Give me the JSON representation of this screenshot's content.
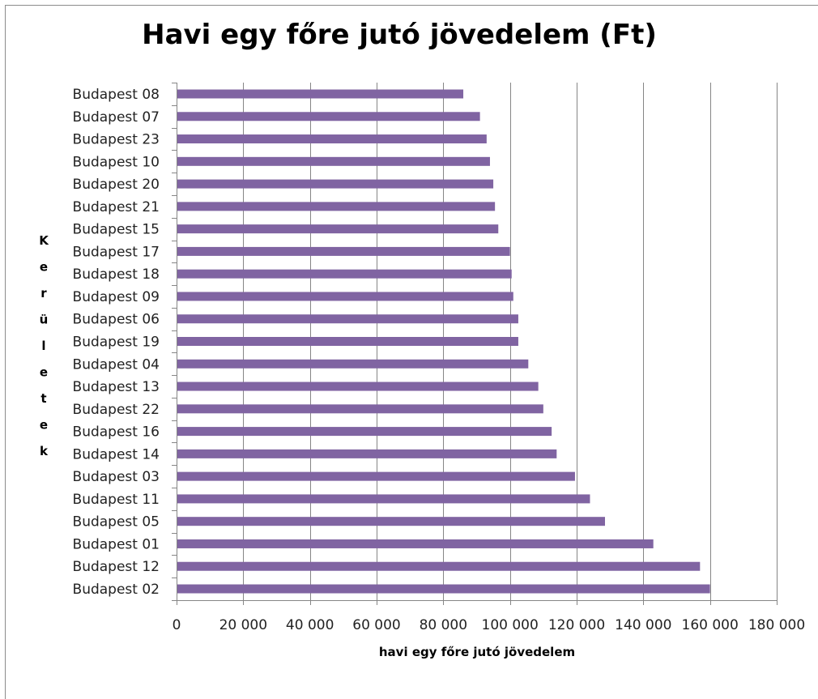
{
  "chart_data": {
    "type": "bar",
    "orientation": "horizontal",
    "title": "Havi egy főre jutó jövedelem (Ft)",
    "xlabel": "havi egy főre jutó jövedelem",
    "ylabel": "Kerületek",
    "categories": [
      "Budapest 08",
      "Budapest 07",
      "Budapest 23",
      "Budapest 10",
      "Budapest 20",
      "Budapest 21",
      "Budapest 15",
      "Budapest 17",
      "Budapest 18",
      "Budapest 09",
      "Budapest 06",
      "Budapest 19",
      "Budapest 04",
      "Budapest 13",
      "Budapest 22",
      "Budapest 16",
      "Budapest 14",
      "Budapest 03",
      "Budapest 11",
      "Budapest 05",
      "Budapest 01",
      "Budapest 12",
      "Budapest 02"
    ],
    "values": [
      86000,
      91000,
      93000,
      94000,
      95000,
      95500,
      96500,
      100000,
      100500,
      101000,
      102500,
      102500,
      105500,
      108500,
      110000,
      112500,
      114000,
      119500,
      124000,
      128500,
      143000,
      157000,
      160000
    ],
    "xlim": [
      0,
      180000
    ],
    "xticks": [
      0,
      20000,
      40000,
      60000,
      80000,
      100000,
      120000,
      140000,
      160000,
      180000
    ],
    "xtick_labels": [
      "0",
      "20 000",
      "40 000",
      "60 000",
      "80 000",
      "100 000",
      "120 000",
      "140 000",
      "160 000",
      "180 000"
    ],
    "grid": "vertical",
    "bar_color": "#8064a2",
    "grid_color": "#868686"
  }
}
